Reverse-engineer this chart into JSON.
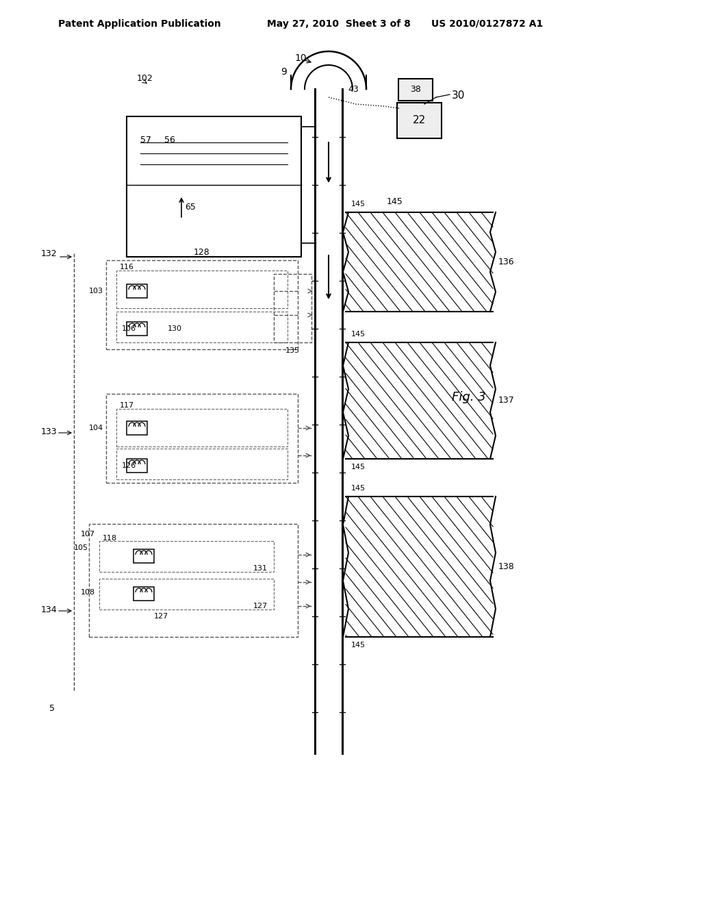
{
  "title_left": "Patent Application Publication",
  "title_mid": "May 27, 2010  Sheet 3 of 8",
  "title_right": "US 2010/0127872 A1",
  "fig_label": "Fig. 3",
  "background": "#ffffff",
  "line_color": "#000000",
  "dashed_color": "#555555"
}
